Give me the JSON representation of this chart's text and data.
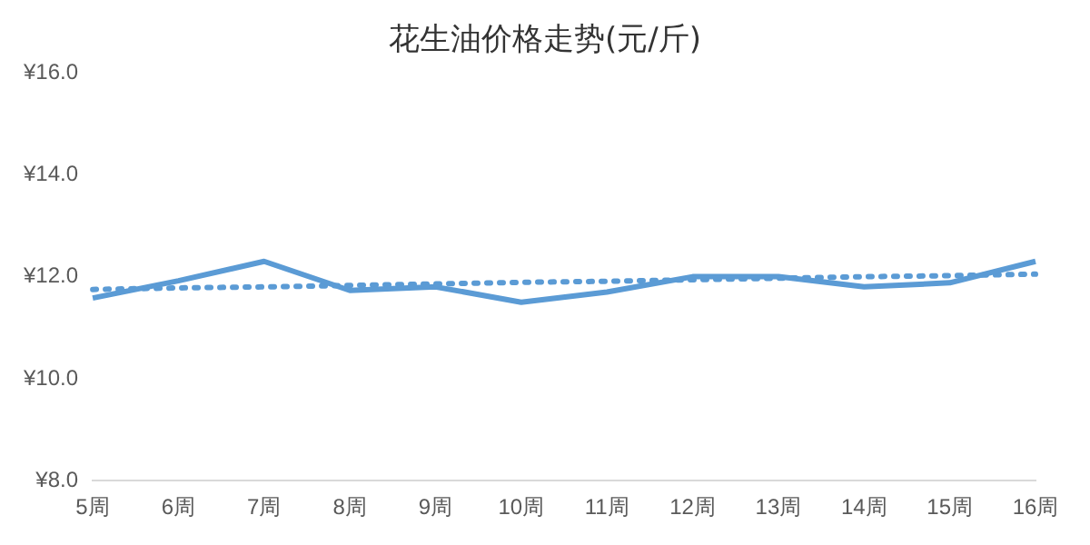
{
  "chart_data": {
    "type": "line",
    "title": "花生油价格走势(元/斤)",
    "categories": [
      "5周",
      "6周",
      "7周",
      "8周",
      "9周",
      "10周",
      "11周",
      "12周",
      "13周",
      "14周",
      "15周",
      "16周"
    ],
    "series": [
      {
        "color": "#5b9bd5",
        "values": [
          11.58,
          11.92,
          12.3,
          11.73,
          11.8,
          11.5,
          11.7,
          12.0,
          12.0,
          11.8,
          11.88,
          12.3
        ]
      },
      {
        "color": "#5b9bd5",
        "line_style": "dotted",
        "values": [
          11.75,
          11.78,
          11.8,
          11.83,
          11.86,
          11.89,
          11.91,
          11.94,
          11.97,
          12.0,
          12.02,
          12.05
        ]
      }
    ],
    "ylim": [
      8,
      16
    ],
    "yticks": [
      {
        "value": 8,
        "label": "¥8.0"
      },
      {
        "value": 10,
        "label": "¥10.0"
      },
      {
        "value": 12,
        "label": "¥12.0"
      },
      {
        "value": 14,
        "label": "¥14.0"
      },
      {
        "value": 16,
        "label": "¥16.0"
      }
    ],
    "grid": false,
    "legend": false,
    "marker": "none",
    "line_style": "solid"
  }
}
